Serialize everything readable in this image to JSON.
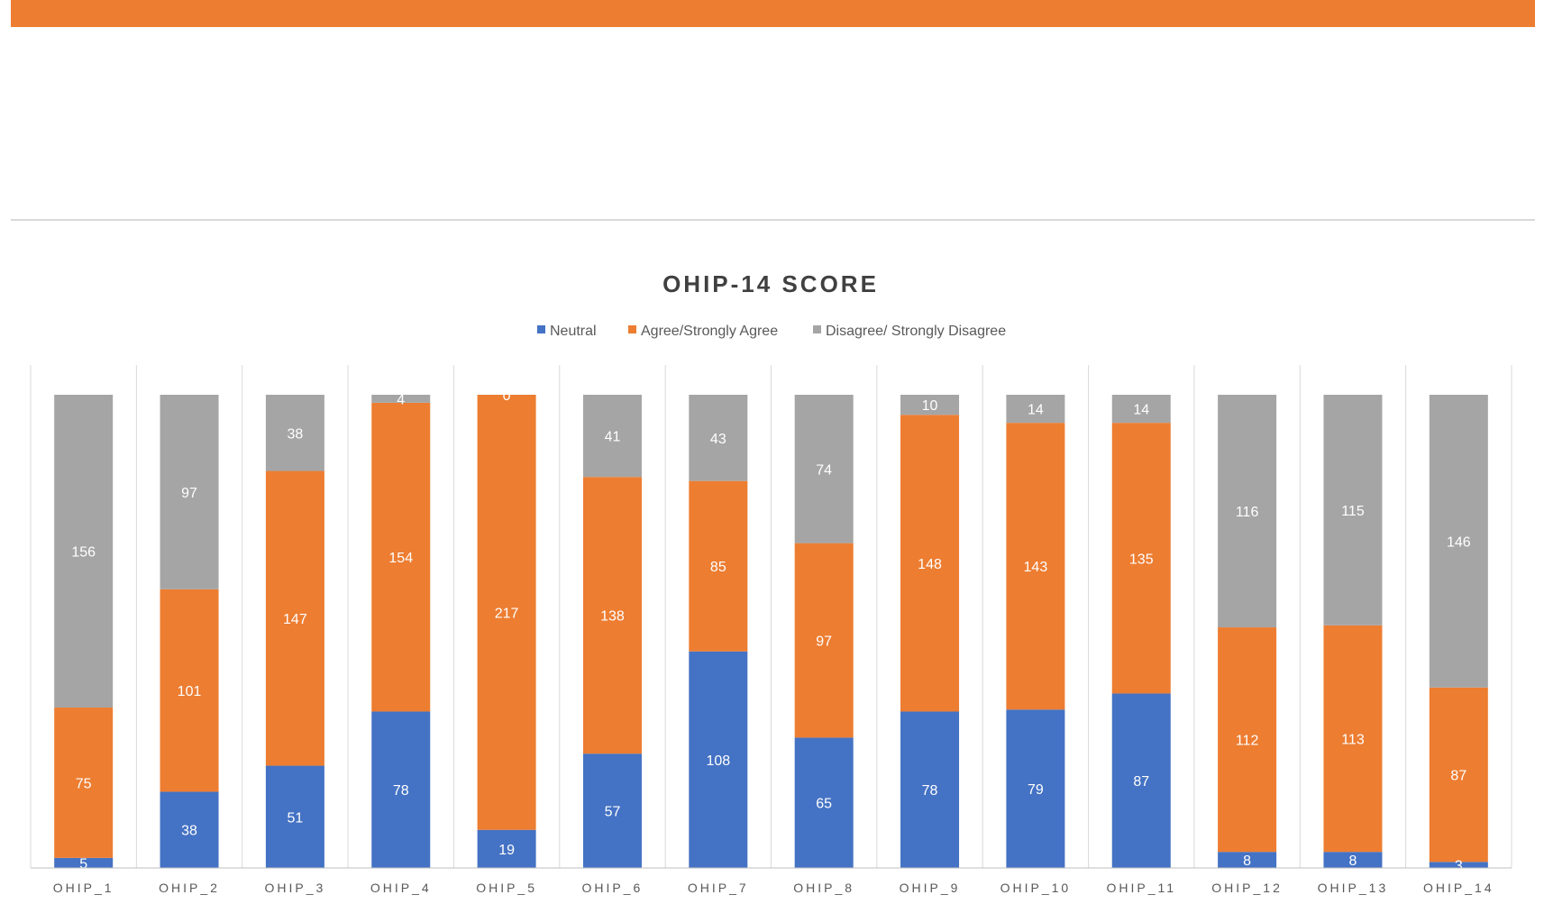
{
  "colors": {
    "top_bar": "#ED7D31",
    "divider": "#D9D9D9",
    "gridline": "#D9D9D9",
    "axis": "#BFBFBF"
  },
  "chart_data": {
    "type": "bar",
    "stacked": true,
    "normalized": true,
    "title": "OHIP-14 SCORE",
    "xlabel": "",
    "ylabel": "",
    "ylim": [
      0,
      100
    ],
    "grid": "vertical category separators",
    "legend_position": "top",
    "categories": [
      "OHIP_1",
      "OHIP_2",
      "OHIP_3",
      "OHIP_4",
      "OHIP_5",
      "OHIP_6",
      "OHIP_7",
      "OHIP_8",
      "OHIP_9",
      "OHIP_10",
      "OHIP_11",
      "OHIP_12",
      "OHIP_13",
      "OHIP_14"
    ],
    "series": [
      {
        "name": "Neutral",
        "color": "#4472C4",
        "values": [
          5,
          38,
          51,
          78,
          19,
          57,
          108,
          65,
          78,
          79,
          87,
          8,
          8,
          3
        ]
      },
      {
        "name": "Agree/Strongly Agree",
        "color": "#ED7D31",
        "values": [
          75,
          101,
          147,
          154,
          217,
          138,
          85,
          97,
          148,
          143,
          135,
          112,
          113,
          87
        ]
      },
      {
        "name": "Disagree/ Strongly Disagree",
        "color": "#A5A5A5",
        "values": [
          156,
          97,
          38,
          4,
          0,
          41,
          43,
          74,
          10,
          14,
          14,
          116,
          115,
          146
        ]
      }
    ]
  }
}
